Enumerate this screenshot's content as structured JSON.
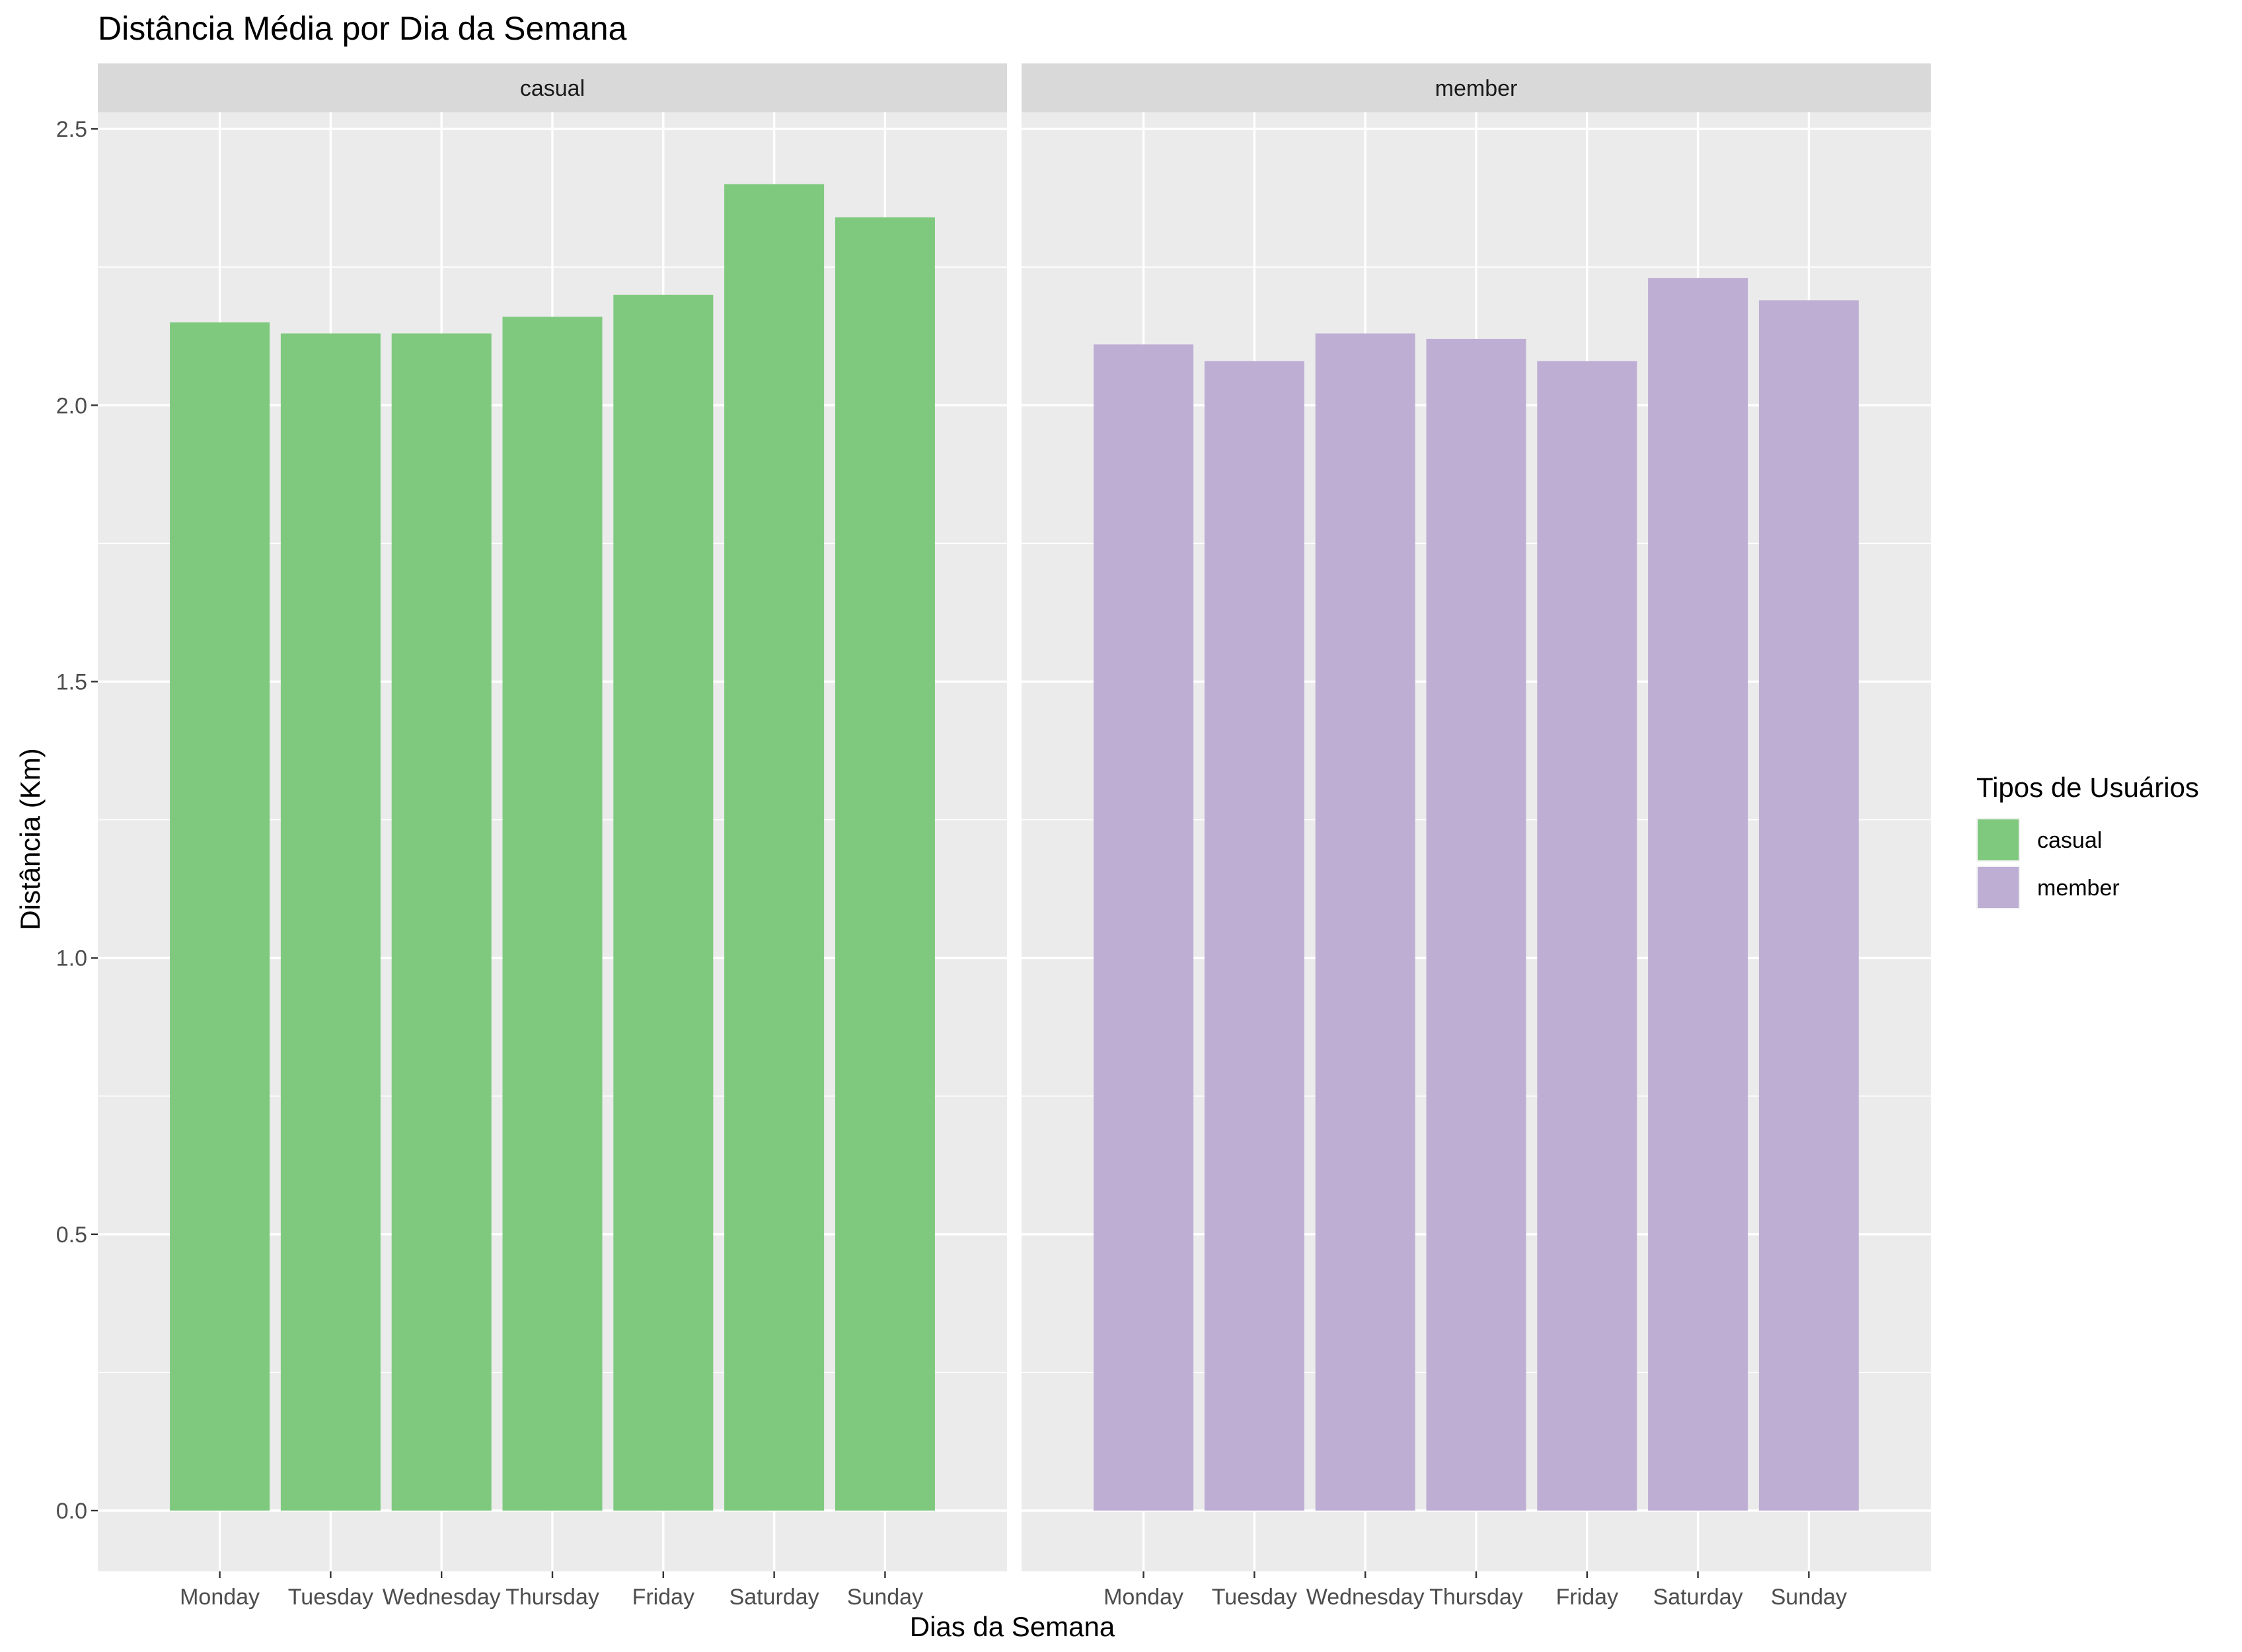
{
  "chart_data": {
    "type": "bar",
    "title": "Distância Média por Dia da Semana",
    "xlabel": "Dias da Semana",
    "ylabel": "Distância (Km)",
    "ylim": [
      -0.11,
      2.53
    ],
    "yticks": [
      "0.0",
      "0.5",
      "1.0",
      "1.5",
      "2.0",
      "2.5"
    ],
    "ytick_values": [
      0,
      0.5,
      1.0,
      1.5,
      2.0,
      2.5
    ],
    "grid": true,
    "categories": [
      "Monday",
      "Tuesday",
      "Wednesday",
      "Thursday",
      "Friday",
      "Saturday",
      "Sunday"
    ],
    "facets": [
      {
        "label": "casual",
        "color": "#7FC97F",
        "values": [
          2.15,
          2.13,
          2.13,
          2.16,
          2.2,
          2.4,
          2.34
        ]
      },
      {
        "label": "member",
        "color": "#BEAED4",
        "values": [
          2.11,
          2.08,
          2.13,
          2.12,
          2.08,
          2.23,
          2.19
        ]
      }
    ],
    "legend": {
      "title": "Tipos de Usuários",
      "placement": "right",
      "items": [
        {
          "label": "casual",
          "color": "#7FC97F"
        },
        {
          "label": "member",
          "color": "#BEAED4"
        }
      ]
    }
  }
}
